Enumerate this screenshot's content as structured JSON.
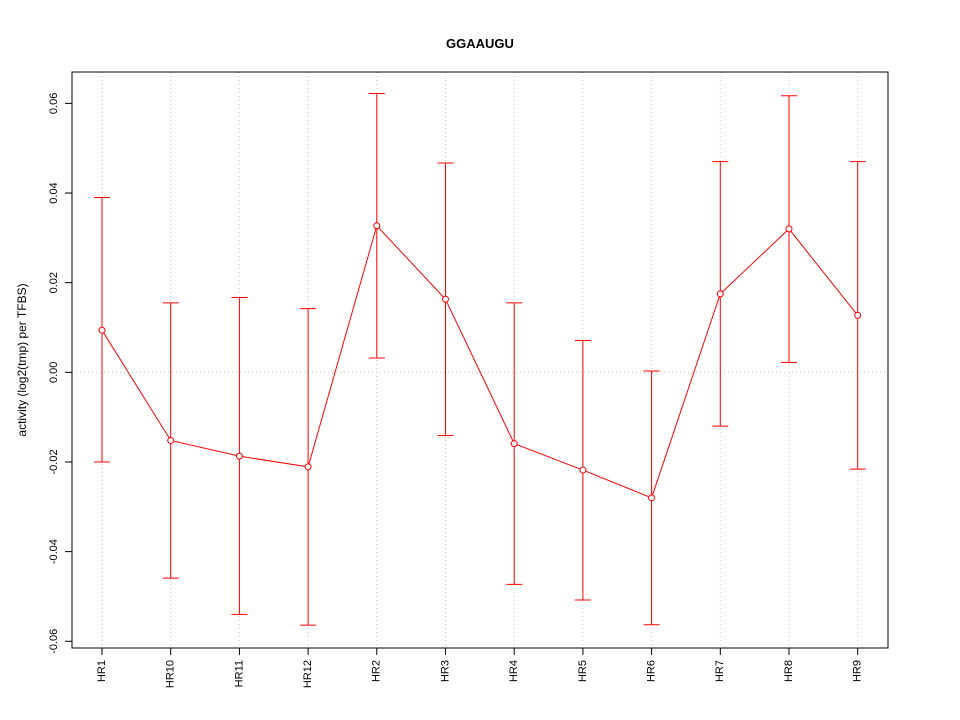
{
  "chart_data": {
    "type": "line",
    "title": "GGAAUGU",
    "xlabel": "",
    "ylabel": "activity (log2(tmp) per TFBS)",
    "categories": [
      "HR1",
      "HR10",
      "HR11",
      "HR12",
      "HR2",
      "HR3",
      "HR4",
      "HR5",
      "HR6",
      "HR7",
      "HR8",
      "HR9"
    ],
    "series": [
      {
        "values": [
          0.0094,
          -0.0152,
          -0.0187,
          -0.0211,
          0.0327,
          0.0163,
          -0.0159,
          -0.0218,
          -0.028,
          0.0175,
          0.032,
          0.0127
        ],
        "upper": [
          0.039,
          0.0155,
          0.0167,
          0.0142,
          0.0622,
          0.0467,
          0.0155,
          0.0071,
          0.0003,
          0.047,
          0.0617,
          0.047
        ],
        "lower": [
          -0.02,
          -0.0459,
          -0.054,
          -0.0564,
          0.0032,
          -0.0141,
          -0.0473,
          -0.0508,
          -0.0563,
          -0.012,
          0.0022,
          -0.0216
        ]
      }
    ],
    "ylim": [
      -0.0615,
      0.067
    ],
    "yticks": [
      "-0.06",
      "-0.04",
      "-0.02",
      "0.00",
      "0.02",
      "0.04",
      "0.06"
    ],
    "grid": true,
    "colors": {
      "series": "#ff0000",
      "grid": "#c8c8c8",
      "axis": "#000000"
    }
  }
}
